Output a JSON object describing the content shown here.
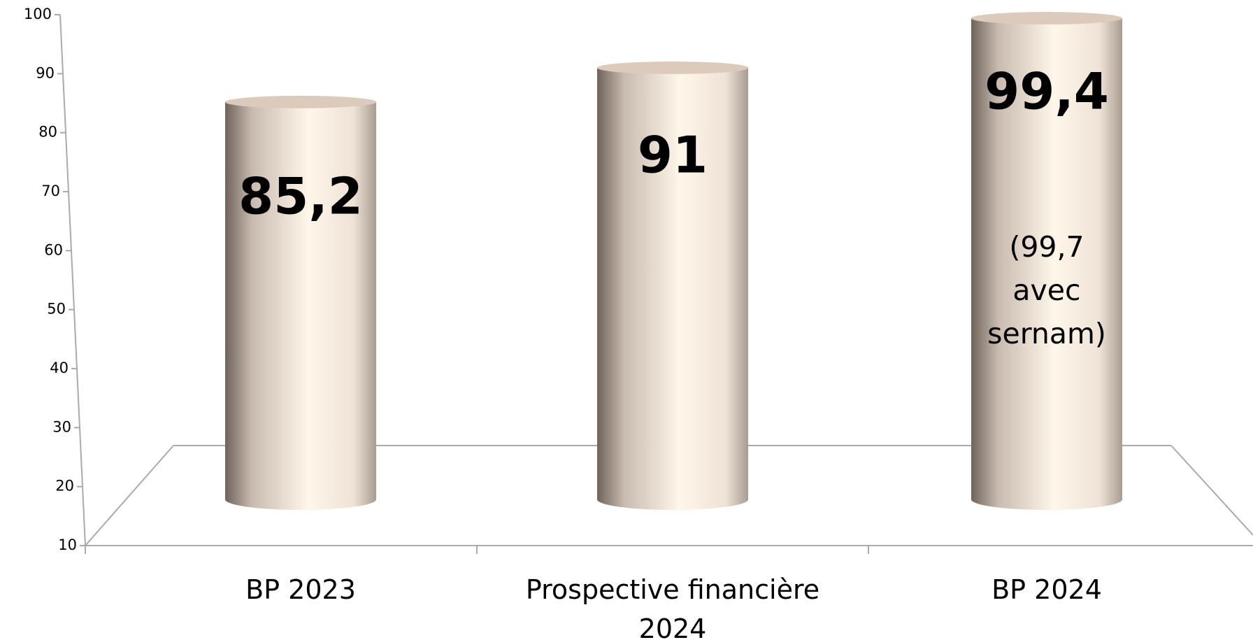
{
  "chart_data": {
    "type": "cylinder",
    "categories": [
      "BP 2023",
      "Prospective financière 2024",
      "BP 2024"
    ],
    "values": [
      85.2,
      91,
      99.4
    ],
    "value_labels": [
      "85,2",
      "91",
      "99,4"
    ],
    "annotation": "(99,7 avec sernam)",
    "color": "#f4e8dc",
    "ylim": [
      10,
      100
    ],
    "yticks": [
      10,
      20,
      30,
      40,
      50,
      60,
      70,
      80,
      90,
      100
    ]
  }
}
